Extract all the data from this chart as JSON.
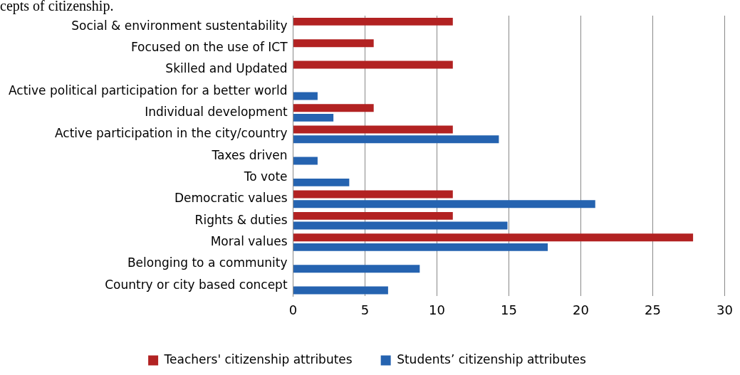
{
  "chart_data": {
    "type": "bar",
    "orientation": "horizontal",
    "annotations": [
      "cepts of citizenship."
    ],
    "categories": [
      "Social & environment sustentability",
      "Focused on the use of ICT",
      "Skilled and Updated",
      "Active political participation for a better world",
      "Individual development",
      "Active participation in the city/country",
      "Taxes driven",
      "To vote",
      "Democratic values",
      "Rights & duties",
      "Moral values",
      "Belonging to a community",
      "Country or city based concept"
    ],
    "series": [
      {
        "name": "Teachers' citizenship attributes",
        "color": "#b22222",
        "values": [
          11.1,
          5.6,
          11.1,
          null,
          5.6,
          11.1,
          null,
          null,
          11.1,
          11.1,
          27.8,
          null,
          null
        ]
      },
      {
        "name": "Students’ citizenship attributes",
        "color": "#2563b0",
        "values": [
          null,
          null,
          null,
          1.7,
          2.8,
          14.3,
          1.7,
          3.9,
          21,
          14.9,
          17.7,
          8.8,
          6.6
        ]
      }
    ],
    "xlim": [
      0,
      30
    ],
    "xticks": [
      0,
      5,
      10,
      15,
      20,
      25,
      30
    ],
    "grid": "x",
    "legend": "bottom"
  }
}
